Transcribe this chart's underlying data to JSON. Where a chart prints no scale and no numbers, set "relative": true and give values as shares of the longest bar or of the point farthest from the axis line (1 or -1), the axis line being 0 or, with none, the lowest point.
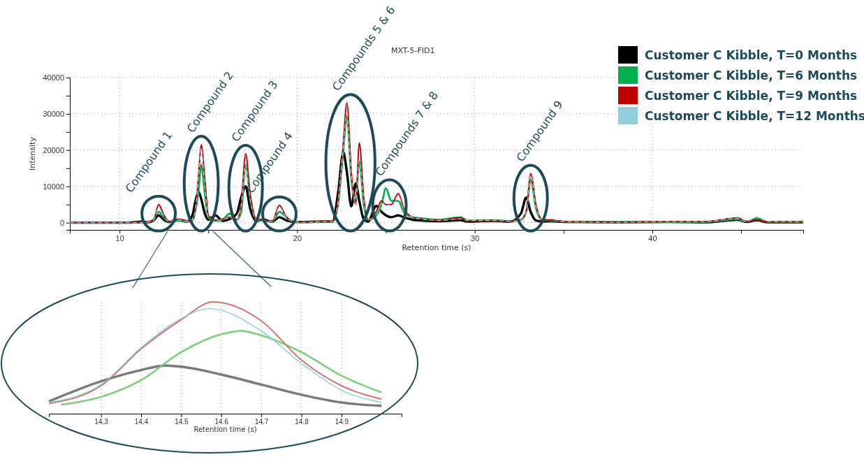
{
  "chart_data": [
    {
      "type": "line",
      "title": "MXT-5-FID1",
      "xlabel": "Retention time (s)",
      "ylabel": "Intensity",
      "xlim": [
        7.2,
        48.5
      ],
      "ylim": [
        -2000,
        40000
      ],
      "xticks": [
        10,
        {
          "value": 15,
          "label": null
        },
        20,
        {
          "value": 25,
          "label": null
        },
        30,
        {
          "value": 35,
          "label": null
        },
        40,
        {
          "value": 45,
          "label": null
        }
      ],
      "yticks": [
        0,
        {
          "value": 5000,
          "label": null
        },
        10000,
        {
          "value": 15000,
          "label": null
        },
        20000,
        {
          "value": 25000,
          "label": null
        },
        30000,
        {
          "value": 35000,
          "label": null
        },
        40000
      ],
      "grid": true,
      "legend": "top right",
      "marker": "none",
      "line_style": "solid",
      "x": [
        7.2,
        10.5,
        11.0,
        11.3,
        11.6,
        11.9,
        12.2,
        12.5,
        12.8,
        13.3,
        13.8,
        14.1,
        14.3,
        14.45,
        14.6,
        14.8,
        15.0,
        15.4,
        15.8,
        16.2,
        16.6,
        16.85,
        17.1,
        17.35,
        17.7,
        18.1,
        18.6,
        19.0,
        19.4,
        19.8,
        20.5,
        21.5,
        22.0,
        22.3,
        22.6,
        22.8,
        23.05,
        23.3,
        23.5,
        23.75,
        24.0,
        24.45,
        24.75,
        25.0,
        25.3,
        25.7,
        26.0,
        26.5,
        27.0,
        28.0,
        29.2,
        29.6,
        31.0,
        32.0,
        32.6,
        32.9,
        33.15,
        33.45,
        33.8,
        34.3,
        35.0,
        38.0,
        41.0,
        43.0,
        44.8,
        45.3,
        45.9,
        46.5,
        48.5
      ],
      "series": [
        {
          "name": "Customer C Kibble, T=0 Months",
          "color": "#000000",
          "values": [
            0,
            0,
            200,
            300,
            100,
            600,
            2000,
            800,
            200,
            700,
            300,
            2000,
            6500,
            8500,
            6500,
            2500,
            800,
            2000,
            500,
            1000,
            2500,
            7000,
            10000,
            4000,
            500,
            800,
            300,
            1500,
            600,
            200,
            200,
            300,
            300,
            8000,
            19400,
            14000,
            4500,
            10800,
            6000,
            1000,
            300,
            4600,
            3000,
            2000,
            1500,
            2000,
            1500,
            800,
            600,
            400,
            700,
            300,
            500,
            300,
            2500,
            6900,
            3000,
            600,
            300,
            400,
            200,
            100,
            200,
            100,
            800,
            200,
            700,
            100,
            100
          ]
        },
        {
          "name": "Customer C Kibble, T=6 Months",
          "color": "#00b050",
          "values": [
            0,
            0,
            0,
            100,
            200,
            800,
            3000,
            1500,
            300,
            500,
            400,
            500,
            4000,
            9000,
            16000,
            8000,
            1500,
            500,
            800,
            2500,
            800,
            3000,
            16000,
            7000,
            800,
            500,
            300,
            3000,
            1500,
            200,
            100,
            300,
            300,
            5000,
            20000,
            29500,
            12000,
            6000,
            17000,
            5000,
            800,
            2000,
            5000,
            9500,
            6000,
            6000,
            3000,
            1500,
            1200,
            800,
            1500,
            600,
            700,
            400,
            800,
            3000,
            12000,
            4000,
            800,
            600,
            300,
            100,
            200,
            200,
            1000,
            300,
            1200,
            200,
            200
          ]
        },
        {
          "name": "Customer C Kibble, T=9 Months",
          "color": "#c00000",
          "values": [
            0,
            0,
            0,
            100,
            300,
            500,
            5000,
            2000,
            300,
            1000,
            500,
            400,
            5000,
            13000,
            21500,
            12000,
            2000,
            700,
            1000,
            1500,
            800,
            5000,
            19000,
            8000,
            1000,
            800,
            300,
            4800,
            1500,
            300,
            100,
            400,
            300,
            6000,
            22000,
            33000,
            14000,
            5000,
            22000,
            7000,
            800,
            3000,
            6000,
            5000,
            5000,
            8000,
            4000,
            1500,
            1000,
            600,
            1300,
            500,
            600,
            400,
            800,
            3000,
            13500,
            5000,
            800,
            800,
            300,
            100,
            300,
            300,
            1300,
            300,
            800,
            200,
            200
          ]
        },
        {
          "name": "Customer C Kibble, T=12 Months",
          "color": "#92cddc",
          "line_style": "dashed",
          "values": [
            0,
            0,
            0,
            100,
            200,
            500,
            4300,
            1500,
            300,
            800,
            400,
            400,
            5000,
            12500,
            20500,
            10000,
            1500,
            600,
            900,
            1500,
            700,
            4500,
            16000,
            6500,
            800,
            700,
            300,
            4200,
            1400,
            300,
            100,
            300,
            300,
            5500,
            21000,
            30000,
            13000,
            5000,
            18000,
            6000,
            800,
            2500,
            5000,
            5500,
            4500,
            7500,
            3500,
            1500,
            1000,
            600,
            1000,
            600,
            600,
            400,
            800,
            3000,
            13000,
            4500,
            1000,
            1000,
            300,
            100,
            300,
            300,
            1200,
            300,
            1600,
            300,
            200
          ]
        }
      ],
      "annotations": [
        {
          "text": "Compound 1",
          "x": 12.2,
          "y": 5000
        },
        {
          "text": "Compound 2",
          "x": 14.6,
          "y": 21500
        },
        {
          "text": "Compound 3",
          "x": 17.1,
          "y": 19000
        },
        {
          "text": "Compound 4",
          "x": 19.0,
          "y": 4800
        },
        {
          "text": "Compounds 5 & 6",
          "x": 23.0,
          "y": 33000
        },
        {
          "text": "Compounds 7 & 8",
          "x": 25.2,
          "y": 9500
        },
        {
          "text": "Compound 9",
          "x": 33.15,
          "y": 13500
        }
      ]
    },
    {
      "type": "line",
      "relative": true,
      "xlabel": "Retention time (s)",
      "xlim": [
        14.17,
        15.05
      ],
      "xticks": [
        14.3,
        14.4,
        14.5,
        14.6,
        14.7,
        14.8,
        14.9
      ],
      "grid": "x",
      "marker": "none",
      "line_style": "solid",
      "series": [
        {
          "color": "#7a7a7a",
          "x": [
            14.17,
            14.3,
            14.4,
            14.46,
            14.5,
            14.6,
            14.7,
            14.8,
            14.9,
            15.0
          ],
          "values": [
            0.11,
            0.29,
            0.39,
            0.43,
            0.42,
            0.35,
            0.26,
            0.17,
            0.1,
            0.07
          ]
        },
        {
          "color": "#7fcf7f",
          "x": [
            14.2,
            14.3,
            14.4,
            14.5,
            14.6,
            14.65,
            14.7,
            14.8,
            14.9,
            15.0
          ],
          "values": [
            0.08,
            0.15,
            0.3,
            0.55,
            0.71,
            0.74,
            0.7,
            0.55,
            0.34,
            0.19
          ]
        },
        {
          "color": "#d97070",
          "x": [
            14.17,
            14.3,
            14.4,
            14.5,
            14.58,
            14.7,
            14.8,
            14.9,
            15.0
          ],
          "values": [
            0.09,
            0.25,
            0.58,
            0.84,
            1,
            0.83,
            0.48,
            0.25,
            0.13
          ]
        },
        {
          "color": "#7fd0d8",
          "x": [
            14.17,
            14.3,
            14.4,
            14.5,
            14.57,
            14.7,
            14.8,
            14.9,
            15.0
          ],
          "values": [
            0.1,
            0.26,
            0.59,
            0.85,
            0.94,
            0.74,
            0.45,
            0.21,
            0.1
          ]
        }
      ]
    }
  ]
}
